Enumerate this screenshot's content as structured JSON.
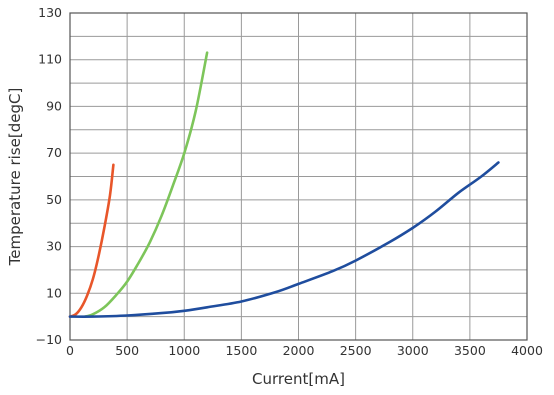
{
  "chart_data": {
    "type": "line",
    "title": "",
    "xlabel": "Current[mA]",
    "ylabel": "Temperature rise[degC]",
    "xlim": [
      0,
      4000
    ],
    "ylim": [
      -10,
      130
    ],
    "x_ticks": [
      0,
      500,
      1000,
      1500,
      2000,
      2500,
      3000,
      3500,
      4000
    ],
    "y_ticks": [
      -10,
      10,
      30,
      50,
      70,
      90,
      110,
      130
    ],
    "y_gridlines": [
      -10,
      0,
      10,
      20,
      30,
      40,
      50,
      60,
      70,
      80,
      90,
      100,
      110,
      120,
      130
    ],
    "grid": true,
    "legend": "none",
    "series": [
      {
        "color": "#e8562a",
        "x": [
          0,
          50,
          100,
          150,
          200,
          250,
          300,
          350,
          380
        ],
        "y": [
          0,
          1,
          4,
          9,
          16,
          26,
          38,
          52,
          65
        ]
      },
      {
        "color": "#7dc55a",
        "x": [
          130,
          200,
          300,
          400,
          500,
          600,
          700,
          800,
          900,
          1000,
          1100,
          1200
        ],
        "y": [
          0,
          1,
          4,
          9,
          15,
          23,
          32,
          43,
          56,
          70,
          88,
          113
        ]
      },
      {
        "color": "#1f4d9e",
        "x": [
          0,
          200,
          500,
          800,
          1000,
          1200,
          1500,
          1800,
          2000,
          2300,
          2500,
          2800,
          3000,
          3200,
          3400,
          3600,
          3750
        ],
        "y": [
          0,
          0,
          0.5,
          1.5,
          2.5,
          4,
          6.5,
          10.5,
          14,
          19.5,
          24,
          32,
          38,
          45,
          53,
          60,
          66
        ]
      }
    ]
  }
}
